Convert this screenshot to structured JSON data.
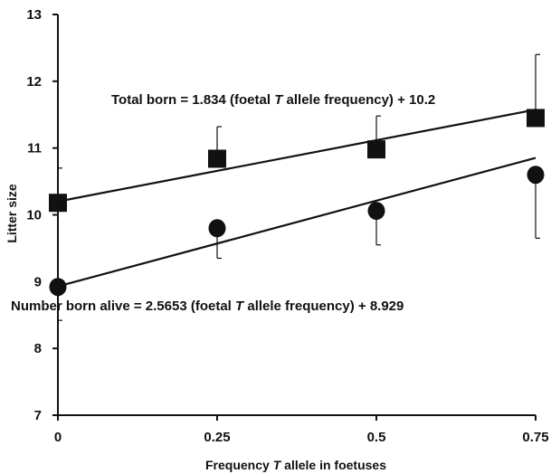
{
  "chart_data": {
    "type": "scatter",
    "title": "",
    "xlabel": {
      "before": "Frequency ",
      "italic": "T",
      "after": " allele in foetuses"
    },
    "ylabel": "Litter size",
    "x_ticks": [
      "0",
      "0.25",
      "0.5",
      "0.75"
    ],
    "y_ticks": [
      "7",
      "8",
      "9",
      "10",
      "11",
      "12",
      "13"
    ],
    "xlim": [
      0,
      0.75
    ],
    "ylim": [
      7,
      13
    ],
    "grid": false,
    "legend": "none",
    "series": [
      {
        "marker": "square",
        "x": [
          0,
          0.25,
          0.5,
          0.75
        ],
        "values": [
          10.18,
          10.84,
          10.98,
          11.45
        ],
        "error_upper": [
          10.7,
          11.32,
          11.48,
          12.4
        ],
        "error_lower": [],
        "fit": {
          "slope": 1.834,
          "intercept": 10.2
        }
      },
      {
        "marker": "circle",
        "x": [
          0,
          0.25,
          0.5,
          0.75
        ],
        "values": [
          8.92,
          9.8,
          10.06,
          10.6
        ],
        "error_upper": [],
        "error_lower": [
          8.42,
          9.35,
          9.55,
          9.65
        ],
        "fit": {
          "slope": 2.5653,
          "intercept": 8.929
        }
      }
    ],
    "annotations": [
      {
        "before": "Total born = 1.834 (foetal ",
        "italic": "T",
        "after": " allele frequency) + 10.2"
      },
      {
        "before": "Number born alive = 2.5653 (foetal ",
        "italic": "T",
        "after": " allele frequency) + 8.929"
      }
    ],
    "colors": {
      "marker": "#111111",
      "line": "#111111",
      "text": "#111111",
      "background": "#ffffff"
    }
  }
}
